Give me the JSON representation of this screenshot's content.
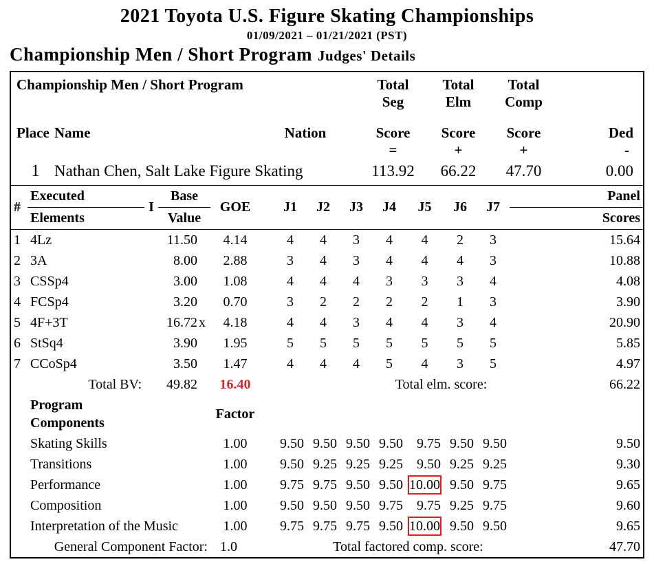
{
  "header": {
    "title": "2021 Toyota U.S. Figure Skating Championships",
    "dates": "01/09/2021 – 01/21/2021 (PST)",
    "event": "Championship Men / Short Program",
    "judges_details": "Judges' Details"
  },
  "summary": {
    "event_label": "Championship Men / Short Program",
    "place_label": "Place",
    "name_label": "Name",
    "nation_label": "Nation",
    "total_seg_l1": "Total",
    "total_seg_l2": "Seg",
    "total_seg_l3": "Score",
    "total_elm_l1": "Total",
    "total_elm_l2": "Elm",
    "total_elm_l3": "Score",
    "total_comp_l1": "Total",
    "total_comp_l2": "Comp",
    "total_comp_l3": "Score",
    "ded_label": "Ded",
    "sym_seg": "=",
    "sym_elm": "+",
    "sym_comp": "+",
    "sym_ded": "-",
    "place": "1",
    "skater": "Nathan Chen, Salt Lake Figure Skating",
    "seg_score": "113.92",
    "elm_score": "66.22",
    "comp_score": "47.70",
    "ded": "0.00"
  },
  "elem_header": {
    "num": "#",
    "executed": "Executed",
    "elements": "Elements",
    "i": "I",
    "base": "Base",
    "value": "Value",
    "goe": "GOE",
    "j1": "J1",
    "j2": "J2",
    "j3": "J3",
    "j4": "J4",
    "j5": "J5",
    "j6": "J6",
    "j7": "J7",
    "panel": "Panel",
    "scores": "Scores"
  },
  "e": [
    {
      "n": "1",
      "name": "4Lz",
      "i": "",
      "bv": "11.50",
      "x": "",
      "goe": "4.14",
      "j": [
        "4",
        "4",
        "3",
        "4",
        "4",
        "2",
        "3"
      ],
      "ps": "15.64"
    },
    {
      "n": "2",
      "name": "3A",
      "i": "",
      "bv": "8.00",
      "x": "",
      "goe": "2.88",
      "j": [
        "3",
        "4",
        "3",
        "4",
        "4",
        "4",
        "3"
      ],
      "ps": "10.88"
    },
    {
      "n": "3",
      "name": "CSSp4",
      "i": "",
      "bv": "3.00",
      "x": "",
      "goe": "1.08",
      "j": [
        "4",
        "4",
        "4",
        "3",
        "3",
        "3",
        "4"
      ],
      "ps": "4.08"
    },
    {
      "n": "4",
      "name": "FCSp4",
      "i": "",
      "bv": "3.20",
      "x": "",
      "goe": "0.70",
      "j": [
        "3",
        "2",
        "2",
        "2",
        "2",
        "1",
        "3"
      ],
      "ps": "3.90"
    },
    {
      "n": "5",
      "name": "4F+3T",
      "i": "",
      "bv": "16.72",
      "x": "x",
      "goe": "4.18",
      "j": [
        "4",
        "4",
        "3",
        "4",
        "4",
        "3",
        "4"
      ],
      "ps": "20.90"
    },
    {
      "n": "6",
      "name": "StSq4",
      "i": "",
      "bv": "3.90",
      "x": "",
      "goe": "1.95",
      "j": [
        "5",
        "5",
        "5",
        "5",
        "5",
        "5",
        "5"
      ],
      "ps": "5.85"
    },
    {
      "n": "7",
      "name": "CCoSp4",
      "i": "",
      "bv": "3.50",
      "x": "",
      "goe": "1.47",
      "j": [
        "4",
        "4",
        "4",
        "5",
        "4",
        "3",
        "5"
      ],
      "ps": "4.97"
    }
  ],
  "totals": {
    "bv_label": "Total BV:",
    "bv": "49.82",
    "goe": "16.40",
    "elm_label": "Total elm. score:",
    "elm": "66.22"
  },
  "pc_header": {
    "label": "Program Components",
    "factor": "Factor"
  },
  "pc": [
    {
      "name": "Skating Skills",
      "f": "1.00",
      "j": [
        "9.50",
        "9.50",
        "9.50",
        "9.50",
        "9.75",
        "9.50",
        "9.50"
      ],
      "hi": [
        0,
        0,
        0,
        0,
        0,
        0,
        0
      ],
      "s": "9.50"
    },
    {
      "name": "Transitions",
      "f": "1.00",
      "j": [
        "9.50",
        "9.25",
        "9.25",
        "9.25",
        "9.50",
        "9.25",
        "9.25"
      ],
      "hi": [
        0,
        0,
        0,
        0,
        0,
        0,
        0
      ],
      "s": "9.30"
    },
    {
      "name": "Performance",
      "f": "1.00",
      "j": [
        "9.75",
        "9.75",
        "9.50",
        "9.50",
        "10.00",
        "9.50",
        "9.75"
      ],
      "hi": [
        0,
        0,
        0,
        0,
        1,
        0,
        0
      ],
      "s": "9.65"
    },
    {
      "name": "Composition",
      "f": "1.00",
      "j": [
        "9.50",
        "9.50",
        "9.50",
        "9.75",
        "9.75",
        "9.25",
        "9.75"
      ],
      "hi": [
        0,
        0,
        0,
        0,
        0,
        0,
        0
      ],
      "s": "9.60"
    },
    {
      "name": "Interpretation of the Music",
      "f": "1.00",
      "j": [
        "9.75",
        "9.75",
        "9.75",
        "9.50",
        "10.00",
        "9.50",
        "9.50"
      ],
      "hi": [
        0,
        0,
        0,
        0,
        1,
        0,
        0
      ],
      "s": "9.65"
    }
  ],
  "footer": {
    "gcf_label": "General Component Factor:",
    "gcf": "1.0",
    "tfcs_label": "Total factored comp. score:",
    "tfcs": "47.70"
  },
  "style": {
    "highlight_color": "#e11b22",
    "goe_total_color": "#d8272d"
  }
}
